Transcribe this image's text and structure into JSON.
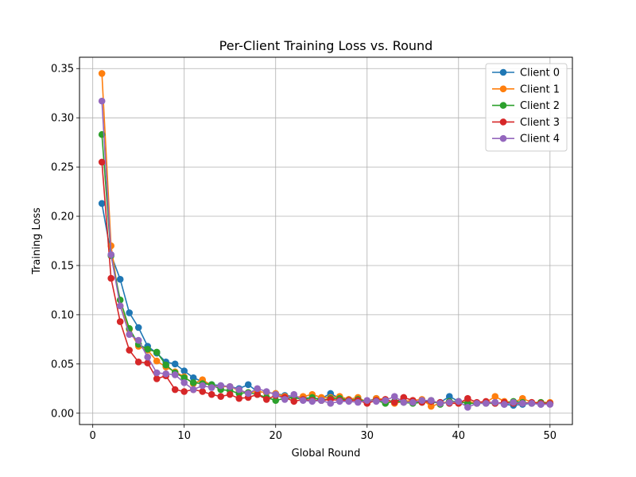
{
  "chart_data": {
    "type": "line",
    "title": "Per-Client Training Loss vs. Round",
    "xlabel": "Global Round",
    "ylabel": "Training Loss",
    "xlim": [
      -1.45,
      52.45
    ],
    "ylim": [
      -0.0115,
      0.3615
    ],
    "xticks": [
      0,
      10,
      20,
      30,
      40,
      50
    ],
    "xtick_labels": [
      "0",
      "10",
      "20",
      "30",
      "40",
      "50"
    ],
    "yticks": [
      0.0,
      0.05,
      0.1,
      0.15,
      0.2,
      0.25,
      0.3,
      0.35
    ],
    "ytick_labels": [
      "0.00",
      "0.05",
      "0.10",
      "0.15",
      "0.20",
      "0.25",
      "0.30",
      "0.35"
    ],
    "grid": true,
    "legend_position": "top-right",
    "x": [
      1,
      2,
      3,
      4,
      5,
      6,
      7,
      8,
      9,
      10,
      11,
      12,
      13,
      14,
      15,
      16,
      17,
      18,
      19,
      20,
      21,
      22,
      23,
      24,
      25,
      26,
      27,
      28,
      29,
      30,
      31,
      32,
      33,
      34,
      35,
      36,
      37,
      38,
      39,
      40,
      41,
      42,
      43,
      44,
      45,
      46,
      47,
      48,
      49,
      50
    ],
    "series": [
      {
        "name": "Client 0",
        "color": "#1f77b4",
        "values": [
          0.213,
          0.161,
          0.136,
          0.102,
          0.087,
          0.068,
          0.061,
          0.052,
          0.05,
          0.043,
          0.036,
          0.032,
          0.029,
          0.028,
          0.027,
          0.025,
          0.029,
          0.022,
          0.021,
          0.02,
          0.018,
          0.017,
          0.016,
          0.015,
          0.015,
          0.02,
          0.015,
          0.014,
          0.013,
          0.012,
          0.015,
          0.013,
          0.012,
          0.012,
          0.011,
          0.012,
          0.011,
          0.011,
          0.017,
          0.012,
          0.01,
          0.01,
          0.011,
          0.011,
          0.009,
          0.008,
          0.009,
          0.01,
          0.009,
          0.01
        ]
      },
      {
        "name": "Client 1",
        "color": "#ff7f0e",
        "values": [
          0.345,
          0.17,
          0.109,
          0.085,
          0.068,
          0.064,
          0.053,
          0.047,
          0.042,
          0.037,
          0.03,
          0.034,
          0.028,
          0.027,
          0.027,
          0.023,
          0.021,
          0.022,
          0.021,
          0.02,
          0.017,
          0.016,
          0.017,
          0.019,
          0.016,
          0.016,
          0.017,
          0.014,
          0.016,
          0.011,
          0.015,
          0.014,
          0.01,
          0.012,
          0.013,
          0.014,
          0.007,
          0.01,
          0.012,
          0.01,
          0.012,
          0.01,
          0.011,
          0.017,
          0.012,
          0.011,
          0.015,
          0.011,
          0.011,
          0.011
        ]
      },
      {
        "name": "Client 2",
        "color": "#2ca02c",
        "values": [
          0.283,
          0.16,
          0.115,
          0.086,
          0.07,
          0.065,
          0.062,
          0.049,
          0.041,
          0.036,
          0.031,
          0.03,
          0.029,
          0.024,
          0.023,
          0.02,
          0.021,
          0.019,
          0.016,
          0.013,
          0.015,
          0.016,
          0.014,
          0.016,
          0.013,
          0.015,
          0.015,
          0.013,
          0.014,
          0.012,
          0.013,
          0.01,
          0.012,
          0.011,
          0.01,
          0.011,
          0.013,
          0.009,
          0.012,
          0.012,
          0.01,
          0.01,
          0.01,
          0.01,
          0.01,
          0.012,
          0.011,
          0.01,
          0.011,
          0.01
        ]
      },
      {
        "name": "Client 3",
        "color": "#d62728",
        "values": [
          0.255,
          0.137,
          0.093,
          0.064,
          0.052,
          0.051,
          0.035,
          0.038,
          0.024,
          0.022,
          0.024,
          0.022,
          0.019,
          0.017,
          0.019,
          0.015,
          0.016,
          0.019,
          0.014,
          0.018,
          0.016,
          0.012,
          0.014,
          0.013,
          0.013,
          0.014,
          0.013,
          0.013,
          0.013,
          0.01,
          0.013,
          0.014,
          0.011,
          0.016,
          0.013,
          0.011,
          0.012,
          0.011,
          0.01,
          0.01,
          0.015,
          0.011,
          0.012,
          0.01,
          0.011,
          0.01,
          0.01,
          0.011,
          0.01,
          0.01
        ]
      },
      {
        "name": "Client 4",
        "color": "#9467bd",
        "values": [
          0.317,
          0.161,
          0.109,
          0.08,
          0.074,
          0.057,
          0.041,
          0.04,
          0.039,
          0.031,
          0.024,
          0.028,
          0.026,
          0.028,
          0.027,
          0.024,
          0.02,
          0.025,
          0.022,
          0.019,
          0.014,
          0.019,
          0.013,
          0.012,
          0.013,
          0.01,
          0.012,
          0.012,
          0.011,
          0.013,
          0.012,
          0.013,
          0.017,
          0.011,
          0.011,
          0.013,
          0.013,
          0.01,
          0.011,
          0.012,
          0.006,
          0.01,
          0.01,
          0.011,
          0.009,
          0.011,
          0.01,
          0.01,
          0.009,
          0.009
        ]
      }
    ]
  }
}
